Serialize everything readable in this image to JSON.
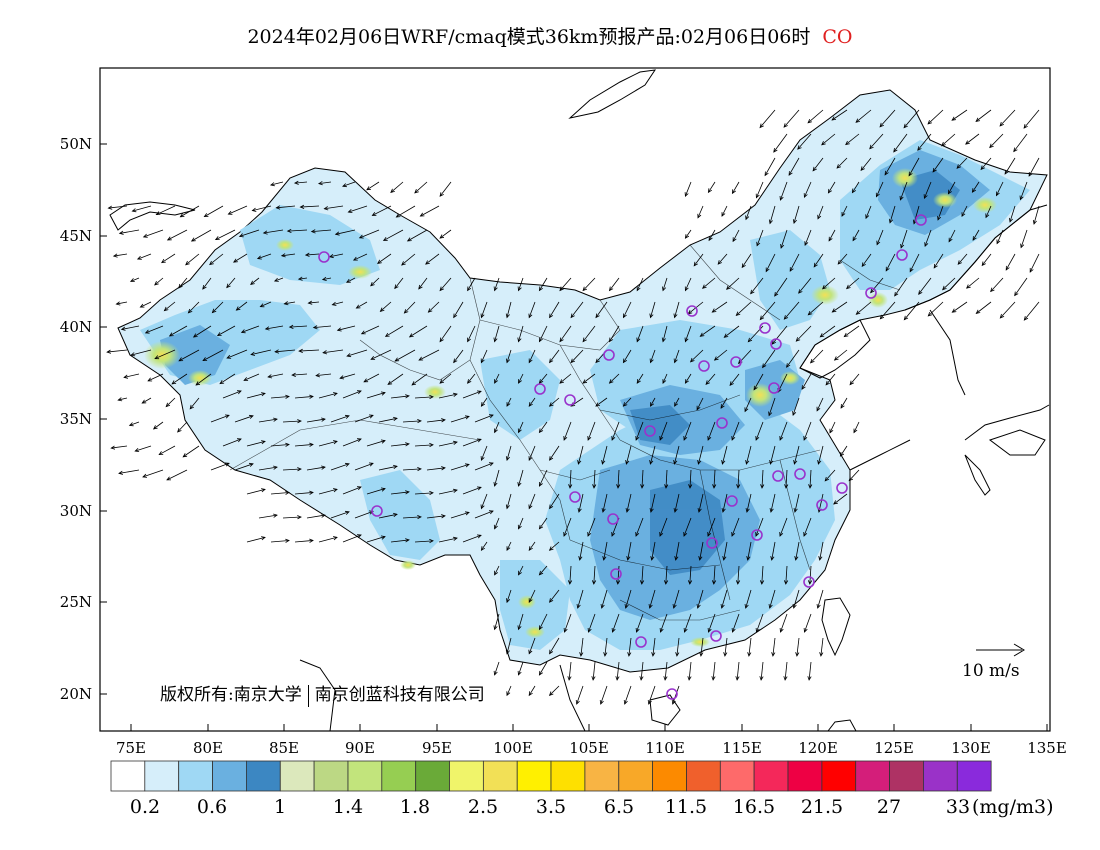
{
  "title": {
    "main": "2024年02月06日WRF/cmaq模式36km预报产品:02月06日06时",
    "species": "CO",
    "species_color": "#e02020"
  },
  "axes": {
    "lat_labels": [
      "50N",
      "45N",
      "40N",
      "35N",
      "30N",
      "25N",
      "20N"
    ],
    "lon_labels": [
      "75E",
      "80E",
      "85E",
      "90E",
      "95E",
      "100E",
      "105E",
      "110E",
      "115E",
      "120E",
      "125E",
      "130E",
      "135E"
    ]
  },
  "copyright": {
    "left": "版权所有:南京大学",
    "right": "南京创蓝科技有限公司"
  },
  "wind_reference": {
    "label": "10 m/s"
  },
  "colorbar": {
    "unit": "(mg/m3)",
    "colors": [
      "#ffffff",
      "#d6eefa",
      "#9fd8f4",
      "#6ab0e0",
      "#3c87c2",
      "#dce8bc",
      "#bcd884",
      "#c2e47c",
      "#96ce52",
      "#6aaa38",
      "#f0f46a",
      "#f2e056",
      "#fff000",
      "#fee000",
      "#f8b444",
      "#f8a828",
      "#fc8a00",
      "#f0602c",
      "#fe6a6a",
      "#f4285a",
      "#ee0044",
      "#ff0000",
      "#d41e7a",
      "#ae3264",
      "#9a32c8",
      "#8a2adc"
    ],
    "labels": [
      "0.2",
      "0.6",
      "1",
      "1.4",
      "1.8",
      "2.5",
      "3.5",
      "6.5",
      "11.5",
      "16.5",
      "21.5",
      "27",
      "33"
    ]
  },
  "city_marker_color": "#9933cc"
}
